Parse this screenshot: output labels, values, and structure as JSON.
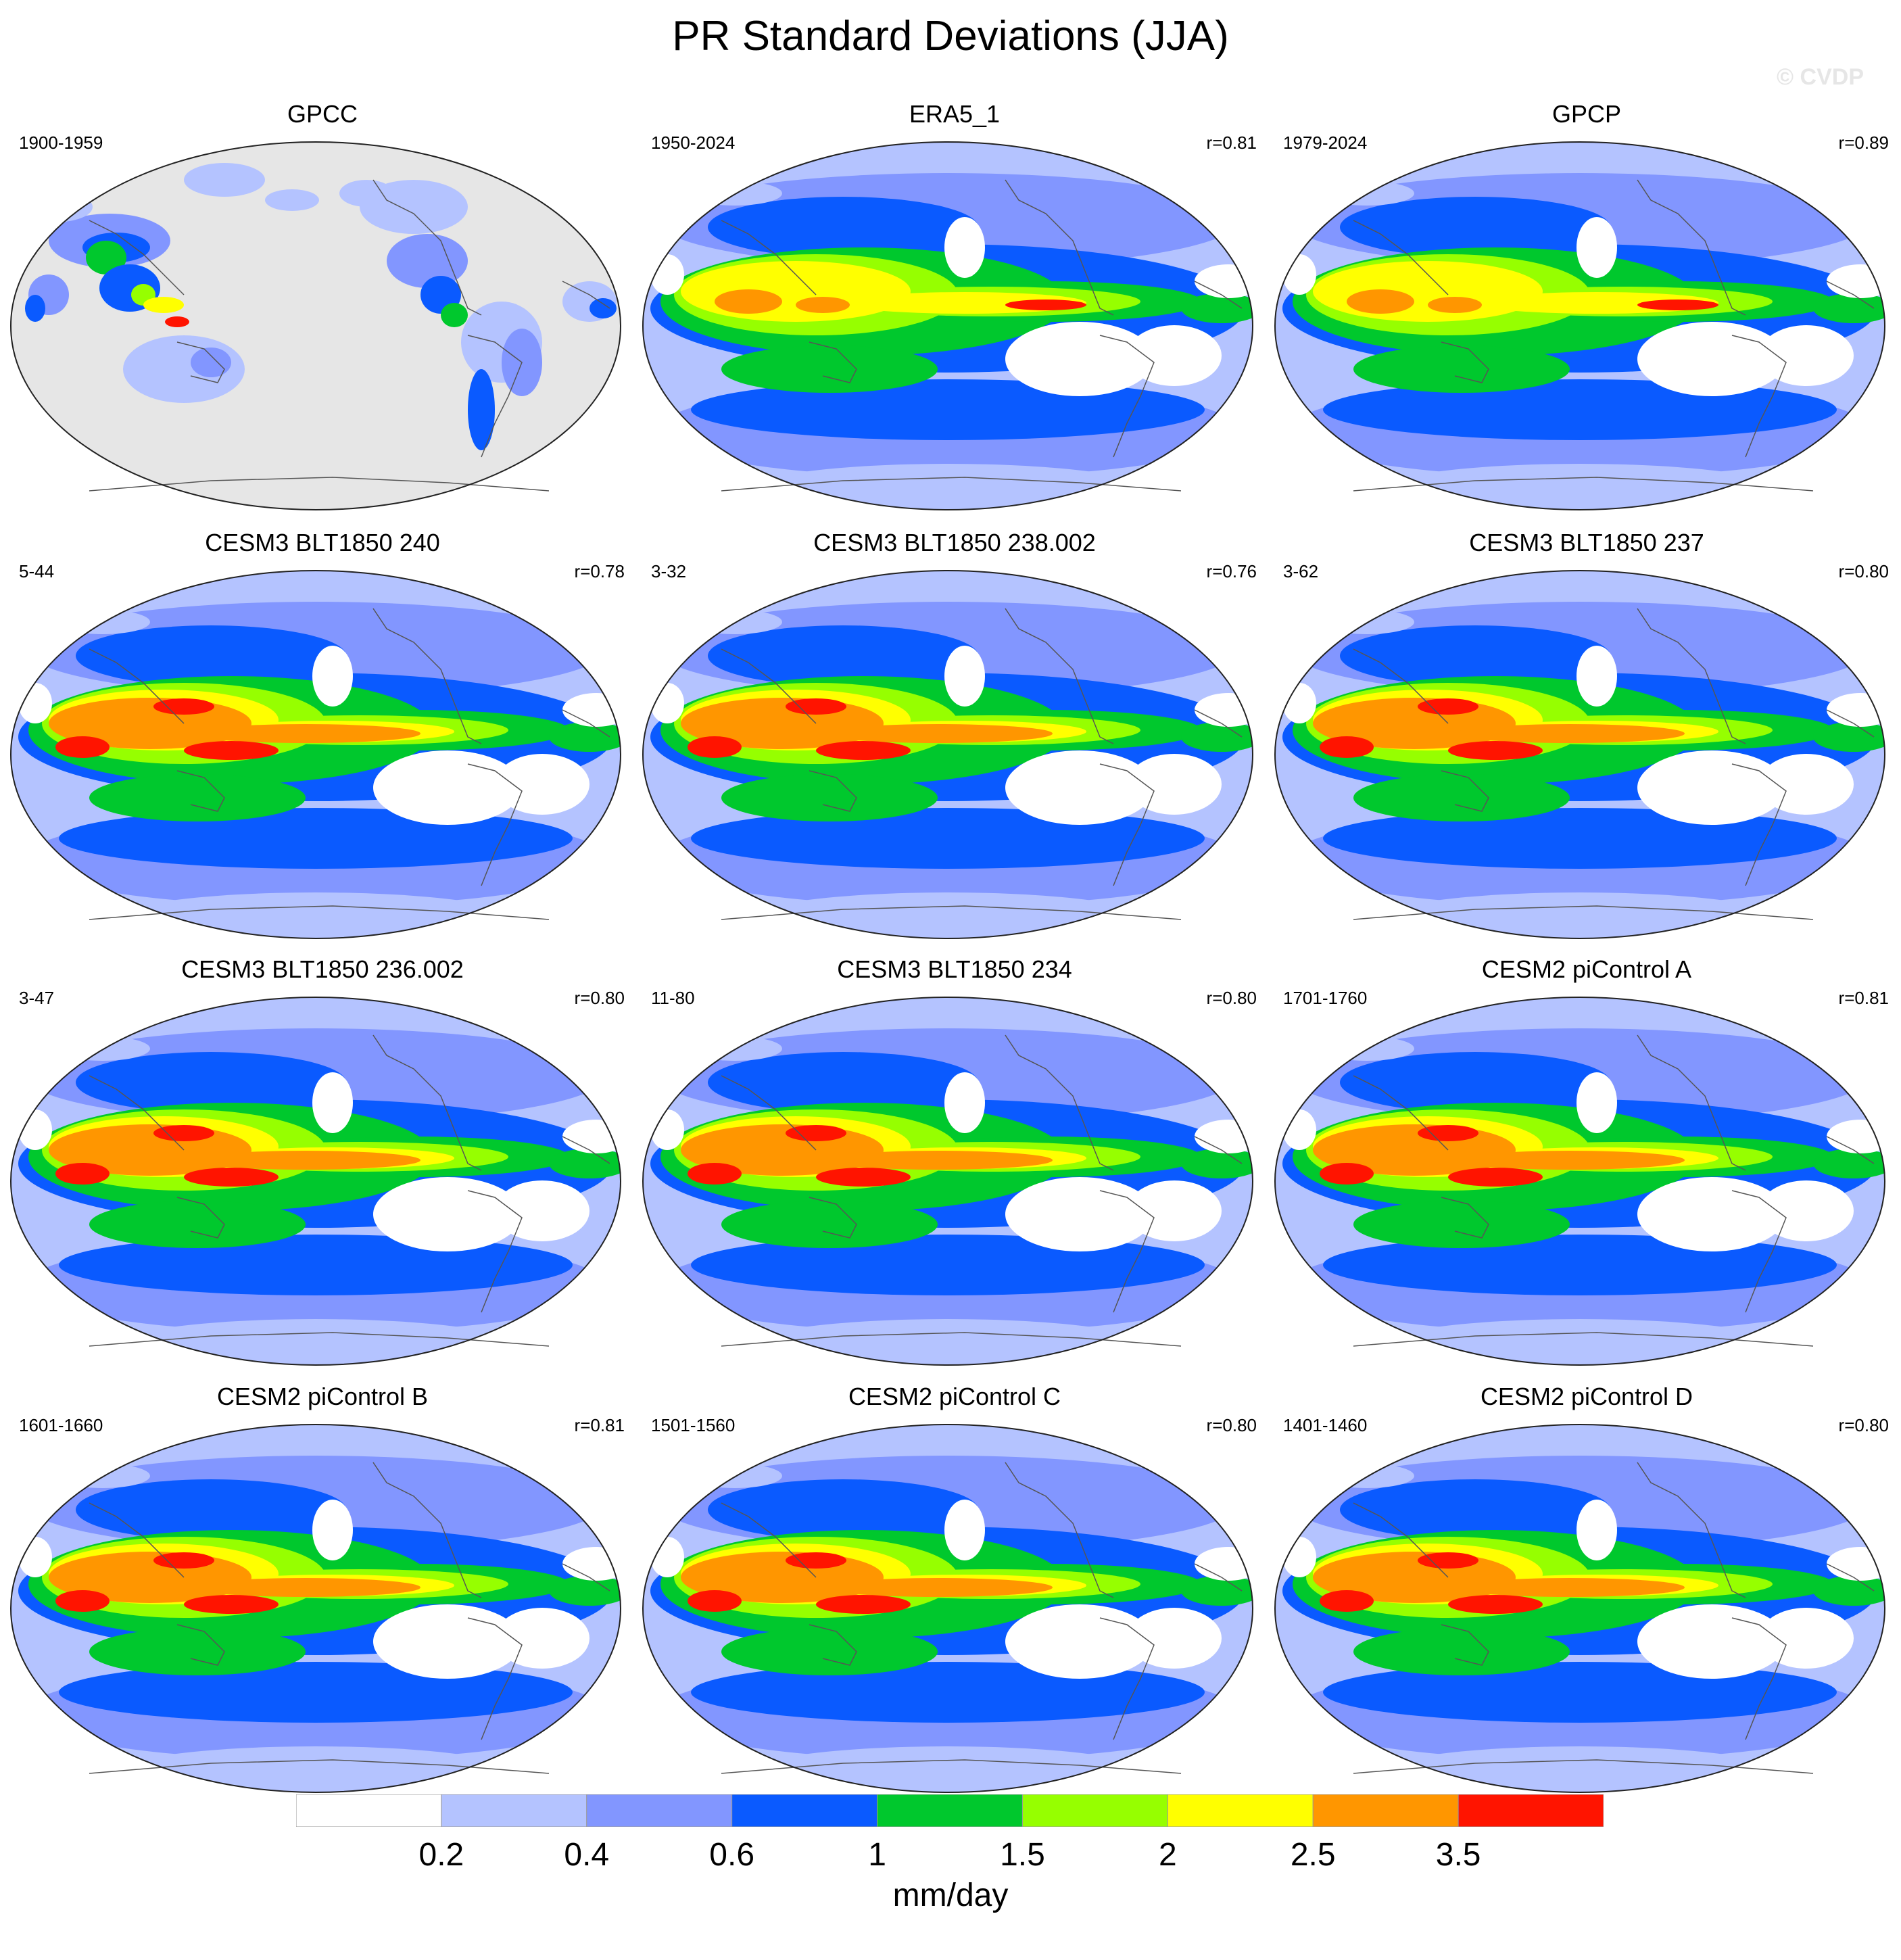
{
  "title": "PR Standard Deviations (JJA)",
  "watermark": "© CVDP",
  "panels": [
    {
      "title": "GPCC",
      "left": "1900-1959",
      "right": "",
      "style": "obs_land"
    },
    {
      "title": "ERA5_1",
      "left": "1950-2024",
      "right": "r=0.81",
      "style": "obs"
    },
    {
      "title": "GPCP",
      "left": "1979-2024",
      "right": "r=0.89",
      "style": "obs"
    },
    {
      "title": "CESM3 BLT1850 240",
      "left": "5-44",
      "right": "r=0.78",
      "style": "model"
    },
    {
      "title": "CESM3 BLT1850 238.002",
      "left": "3-32",
      "right": "r=0.76",
      "style": "model"
    },
    {
      "title": "CESM3 BLT1850 237",
      "left": "3-62",
      "right": "r=0.80",
      "style": "model"
    },
    {
      "title": "CESM3 BLT1850 236.002",
      "left": "3-47",
      "right": "r=0.80",
      "style": "model"
    },
    {
      "title": "CESM3 BLT1850 234",
      "left": "11-80",
      "right": "r=0.80",
      "style": "model"
    },
    {
      "title": "CESM2 piControl A",
      "left": "1701-1760",
      "right": "r=0.81",
      "style": "model"
    },
    {
      "title": "CESM2 piControl B",
      "left": "1601-1660",
      "right": "r=0.81",
      "style": "model"
    },
    {
      "title": "CESM2 piControl C",
      "left": "1501-1560",
      "right": "r=0.80",
      "style": "model"
    },
    {
      "title": "CESM2 piControl D",
      "left": "1401-1460",
      "right": "r=0.80",
      "style": "model"
    }
  ],
  "colorbar": {
    "units": "mm/day",
    "colors": [
      "#ffffff",
      "#b4c3ff",
      "#8296ff",
      "#0a5aff",
      "#00c82d",
      "#96ff00",
      "#ffff00",
      "#ff9600",
      "#ff1400"
    ],
    "labels": [
      "0.2",
      "0.4",
      "0.6",
      "1",
      "1.5",
      "2",
      "2.5",
      "3.5"
    ]
  }
}
